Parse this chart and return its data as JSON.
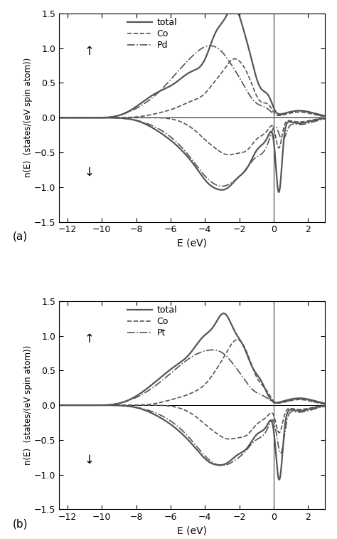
{
  "xlim": [
    -12.5,
    3.0
  ],
  "ylim": [
    -1.5,
    1.5
  ],
  "xticks": [
    -12,
    -10,
    -8,
    -6,
    -4,
    -2,
    0,
    2
  ],
  "yticks": [
    -1.5,
    -1.0,
    -0.5,
    0.0,
    0.5,
    1.0,
    1.5
  ],
  "xlabel": "E (eV)",
  "ylabel": "n(E)  (states/(eV spin atom))",
  "fermi_energy": 0.0,
  "panel_a_label": "(a)",
  "panel_b_label": "(b)",
  "legend_a": [
    "total",
    "Co",
    "Pd"
  ],
  "legend_b": [
    "total",
    "Co",
    "Pt"
  ],
  "line_color": "#555555",
  "spin_up_arrow": "↑",
  "spin_down_arrow": "↓",
  "background_color": "#ffffff",
  "figsize": [
    4.74,
    7.57
  ],
  "dpi": 100
}
